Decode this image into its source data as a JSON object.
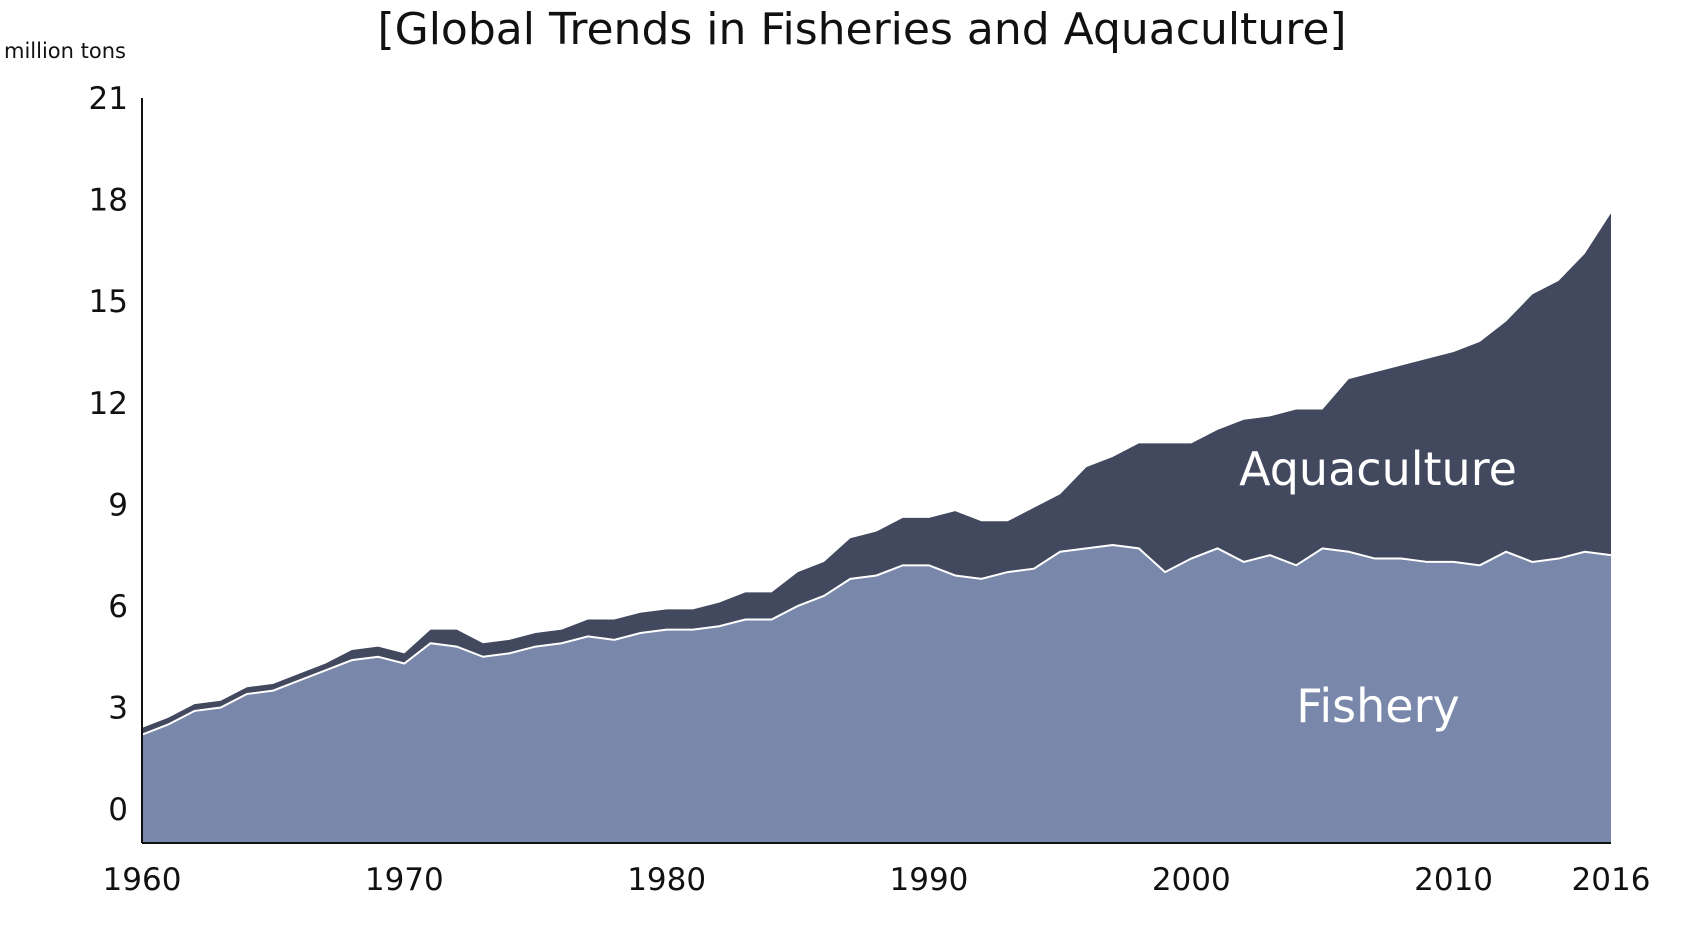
{
  "chart_data": {
    "type": "area",
    "stacked": true,
    "title": "[Global Trends in Fisheries and Aquaculture]",
    "ylabel": "million tons",
    "xlabel": "",
    "xlim": [
      1960,
      2016
    ],
    "ylim": [
      -1,
      21
    ],
    "x_ticks": [
      1960,
      1970,
      1980,
      1990,
      2000,
      2010,
      2016
    ],
    "y_ticks": [
      0,
      3,
      6,
      9,
      12,
      15,
      18,
      21
    ],
    "grid": false,
    "legend": "none",
    "x": [
      1960,
      1961,
      1962,
      1963,
      1964,
      1965,
      1966,
      1967,
      1968,
      1969,
      1970,
      1971,
      1972,
      1973,
      1974,
      1975,
      1976,
      1977,
      1978,
      1979,
      1980,
      1981,
      1982,
      1983,
      1984,
      1985,
      1986,
      1987,
      1988,
      1989,
      1990,
      1991,
      1992,
      1993,
      1994,
      1995,
      1996,
      1997,
      1998,
      1999,
      2000,
      2001,
      2002,
      2003,
      2004,
      2005,
      2006,
      2007,
      2008,
      2009,
      2010,
      2011,
      2012,
      2013,
      2014,
      2015,
      2016
    ],
    "series": [
      {
        "name": "Fishery",
        "color": "#7987AA",
        "values": [
          2.2,
          2.5,
          2.9,
          3.0,
          3.4,
          3.5,
          3.8,
          4.1,
          4.4,
          4.5,
          4.3,
          4.9,
          4.8,
          4.5,
          4.6,
          4.8,
          4.9,
          5.1,
          5.0,
          5.2,
          5.3,
          5.3,
          5.4,
          5.6,
          5.6,
          6.0,
          6.3,
          6.8,
          6.9,
          7.2,
          7.2,
          6.9,
          6.8,
          7.0,
          7.1,
          7.6,
          7.7,
          7.8,
          7.7,
          7.0,
          7.4,
          7.7,
          7.3,
          7.5,
          7.2,
          7.7,
          7.6,
          7.4,
          7.4,
          7.3,
          7.3,
          7.2,
          7.6,
          7.3,
          7.4,
          7.6,
          7.5
        ]
      },
      {
        "name": "Aquaculture",
        "color": "#42485E",
        "values": [
          0.2,
          0.2,
          0.2,
          0.2,
          0.2,
          0.2,
          0.2,
          0.2,
          0.3,
          0.3,
          0.3,
          0.4,
          0.5,
          0.4,
          0.4,
          0.4,
          0.4,
          0.5,
          0.6,
          0.6,
          0.6,
          0.6,
          0.7,
          0.8,
          0.8,
          1.0,
          1.0,
          1.2,
          1.3,
          1.4,
          1.4,
          1.9,
          1.7,
          1.5,
          1.8,
          1.7,
          2.4,
          2.6,
          3.1,
          3.8,
          3.4,
          3.5,
          4.2,
          4.1,
          4.6,
          4.1,
          5.1,
          5.5,
          5.7,
          6.0,
          6.2,
          6.6,
          6.8,
          7.9,
          8.2,
          8.8,
          10.1
        ]
      }
    ]
  }
}
